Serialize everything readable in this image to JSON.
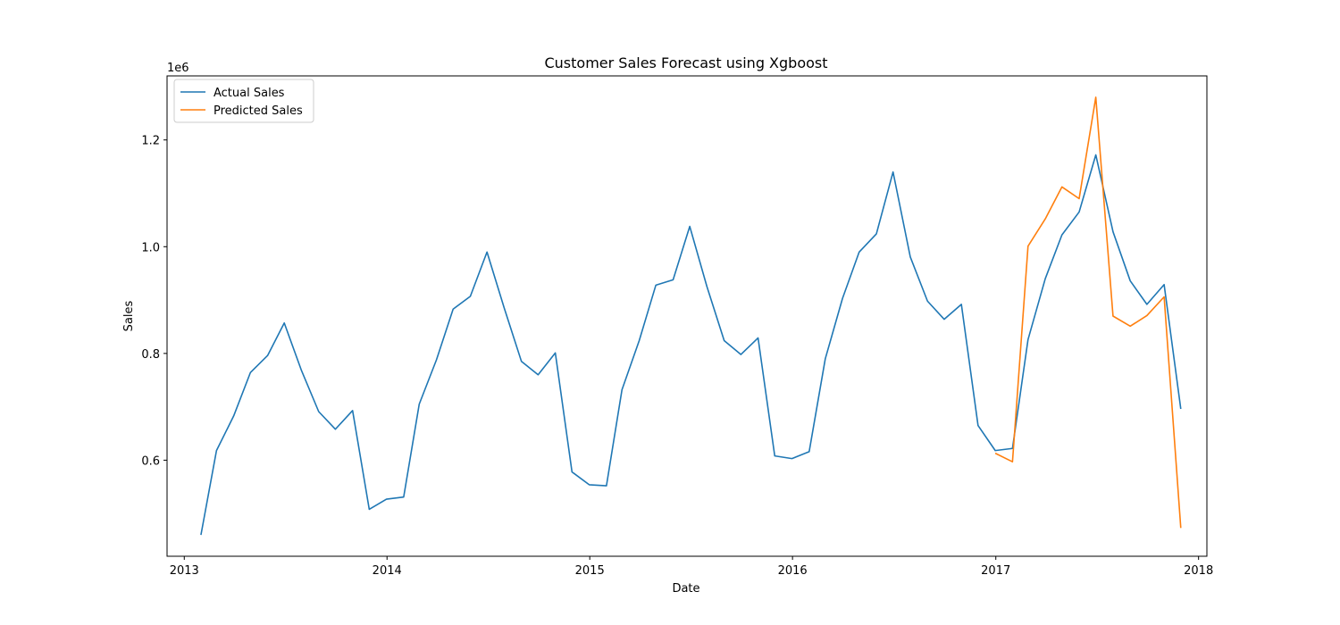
{
  "chart_data": {
    "type": "line",
    "title": "Customer Sales Forecast using Xgboost",
    "xlabel": "Date",
    "ylabel": "Sales",
    "y_offset_label": "1e6",
    "xlim": [
      "2012-12-01",
      "2018-01-16"
    ],
    "ylim": [
      0.42,
      1.32
    ],
    "x_ticks": [
      "2013",
      "2014",
      "2015",
      "2016",
      "2017",
      "2018"
    ],
    "y_ticks": [
      "0.6",
      "0.8",
      "1.0",
      "1.2"
    ],
    "grid": false,
    "legend_position": "top-left",
    "series": [
      {
        "name": "Actual Sales",
        "color": "#1f77b4",
        "points": [
          [
            "2013-01-31",
            0.46
          ],
          [
            "2013-02-28",
            0.618
          ],
          [
            "2013-03-31",
            0.683
          ],
          [
            "2013-04-30",
            0.764
          ],
          [
            "2013-05-31",
            0.796
          ],
          [
            "2013-06-30",
            0.857
          ],
          [
            "2013-07-31",
            0.768
          ],
          [
            "2013-08-31",
            0.691
          ],
          [
            "2013-09-30",
            0.658
          ],
          [
            "2013-10-31",
            0.693
          ],
          [
            "2013-11-30",
            0.508
          ],
          [
            "2013-12-31",
            0.527
          ],
          [
            "2014-01-31",
            0.531
          ],
          [
            "2014-02-28",
            0.705
          ],
          [
            "2014-03-31",
            0.788
          ],
          [
            "2014-04-30",
            0.883
          ],
          [
            "2014-05-31",
            0.907
          ],
          [
            "2014-06-30",
            0.99
          ],
          [
            "2014-07-31",
            0.885
          ],
          [
            "2014-08-31",
            0.785
          ],
          [
            "2014-09-30",
            0.76
          ],
          [
            "2014-10-31",
            0.801
          ],
          [
            "2014-11-30",
            0.578
          ],
          [
            "2014-12-31",
            0.554
          ],
          [
            "2015-01-31",
            0.552
          ],
          [
            "2015-02-28",
            0.732
          ],
          [
            "2015-03-31",
            0.824
          ],
          [
            "2015-04-30",
            0.928
          ],
          [
            "2015-05-31",
            0.938
          ],
          [
            "2015-06-30",
            1.038
          ],
          [
            "2015-07-31",
            0.925
          ],
          [
            "2015-08-31",
            0.824
          ],
          [
            "2015-09-30",
            0.798
          ],
          [
            "2015-10-31",
            0.829
          ],
          [
            "2015-11-30",
            0.608
          ],
          [
            "2015-12-31",
            0.603
          ],
          [
            "2016-01-31",
            0.616
          ],
          [
            "2016-02-29",
            0.79
          ],
          [
            "2016-03-31",
            0.903
          ],
          [
            "2016-04-30",
            0.99
          ],
          [
            "2016-05-31",
            1.024
          ],
          [
            "2016-06-30",
            1.14
          ],
          [
            "2016-07-31",
            0.981
          ],
          [
            "2016-08-31",
            0.898
          ],
          [
            "2016-09-30",
            0.864
          ],
          [
            "2016-10-31",
            0.892
          ],
          [
            "2016-11-30",
            0.665
          ],
          [
            "2016-12-31",
            0.618
          ],
          [
            "2017-01-31",
            0.622
          ],
          [
            "2017-02-28",
            0.826
          ],
          [
            "2017-03-31",
            0.94
          ],
          [
            "2017-04-30",
            1.022
          ],
          [
            "2017-05-31",
            1.065
          ],
          [
            "2017-06-30",
            1.172
          ],
          [
            "2017-07-31",
            1.028
          ],
          [
            "2017-08-31",
            0.936
          ],
          [
            "2017-09-30",
            0.892
          ],
          [
            "2017-10-31",
            0.929
          ],
          [
            "2017-11-30",
            0.696
          ]
        ]
      },
      {
        "name": "Predicted Sales",
        "color": "#ff7f0e",
        "points": [
          [
            "2016-12-31",
            0.613
          ],
          [
            "2017-01-31",
            0.597
          ],
          [
            "2017-02-28",
            1.001
          ],
          [
            "2017-03-31",
            1.052
          ],
          [
            "2017-04-30",
            1.112
          ],
          [
            "2017-05-31",
            1.09
          ],
          [
            "2017-06-30",
            1.28
          ],
          [
            "2017-07-31",
            0.87
          ],
          [
            "2017-08-31",
            0.851
          ],
          [
            "2017-09-30",
            0.871
          ],
          [
            "2017-10-31",
            0.906
          ],
          [
            "2017-11-30",
            0.473
          ]
        ]
      }
    ]
  }
}
